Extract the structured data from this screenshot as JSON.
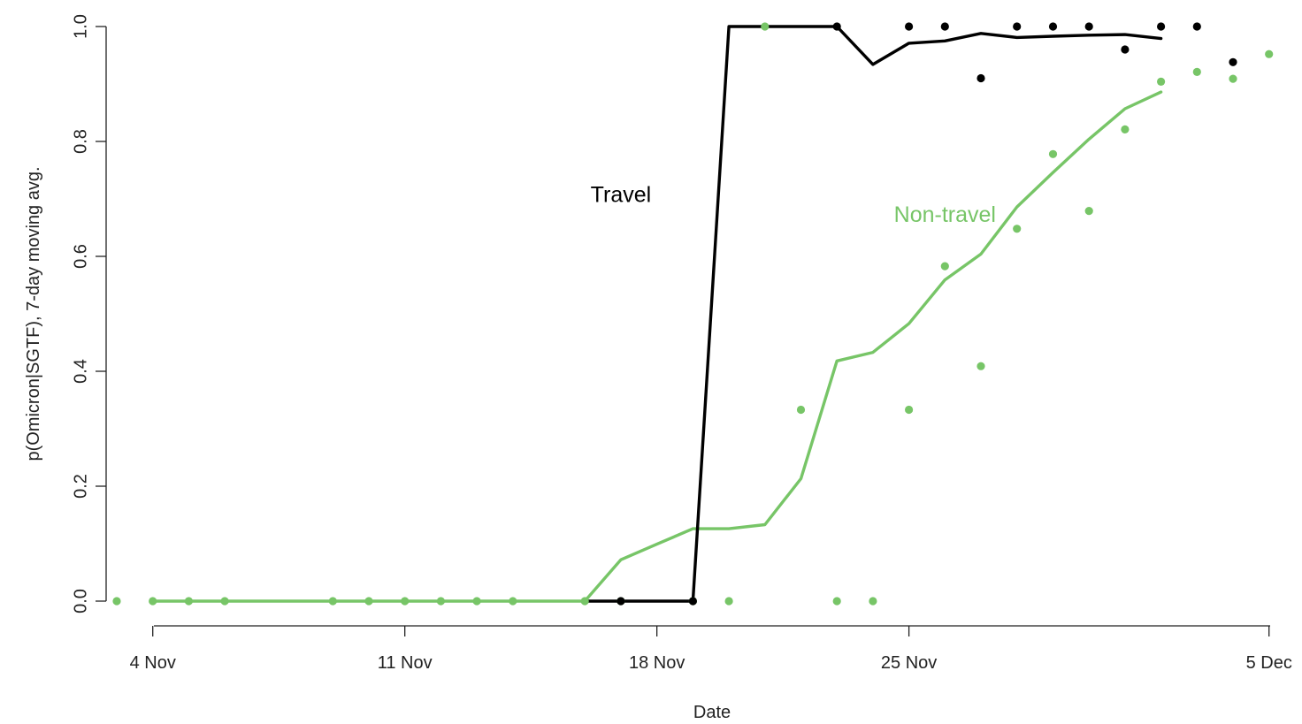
{
  "chart_data": {
    "type": "line",
    "xlabel": "Date",
    "ylabel": "p(Omicron|SGTF), 7-day moving avg.",
    "xlim": [
      "2021-11-03",
      "2021-12-05"
    ],
    "ylim": [
      0,
      1
    ],
    "x_ticks": [
      {
        "date": "2021-11-04",
        "label": "4 Nov"
      },
      {
        "date": "2021-11-11",
        "label": "11 Nov"
      },
      {
        "date": "2021-11-18",
        "label": "18 Nov"
      },
      {
        "date": "2021-11-25",
        "label": "25 Nov"
      },
      {
        "date": "2021-12-05",
        "label": "5 Dec"
      }
    ],
    "y_ticks": [
      {
        "value": 0.0,
        "label": "0.0"
      },
      {
        "value": 0.2,
        "label": "0.2"
      },
      {
        "value": 0.4,
        "label": "0.4"
      },
      {
        "value": 0.6,
        "label": "0.6"
      },
      {
        "value": 0.8,
        "label": "0.8"
      },
      {
        "value": 1.0,
        "label": "1.0"
      }
    ],
    "grid": false,
    "annotations": [
      {
        "text": "Travel",
        "series": "travel",
        "date": "2021-11-17",
        "y": 0.695
      },
      {
        "text": "Non-travel",
        "series": "non_travel",
        "date": "2021-11-26",
        "y": 0.66
      }
    ],
    "series": [
      {
        "key": "travel",
        "name": "Travel",
        "color": "#000000",
        "line": [
          {
            "date": "2021-11-16",
            "y": 0.0
          },
          {
            "date": "2021-11-17",
            "y": 0.0
          },
          {
            "date": "2021-11-18",
            "y": 0.0
          },
          {
            "date": "2021-11-19",
            "y": 0.0
          },
          {
            "date": "2021-11-20",
            "y": 1.0
          },
          {
            "date": "2021-11-21",
            "y": 1.0
          },
          {
            "date": "2021-11-22",
            "y": 1.0
          },
          {
            "date": "2021-11-23",
            "y": 1.0
          },
          {
            "date": "2021-11-24",
            "y": 0.934
          },
          {
            "date": "2021-11-25",
            "y": 0.971
          },
          {
            "date": "2021-11-26",
            "y": 0.975
          },
          {
            "date": "2021-11-27",
            "y": 0.988
          },
          {
            "date": "2021-11-28",
            "y": 0.981
          },
          {
            "date": "2021-11-29",
            "y": 0.983
          },
          {
            "date": "2021-11-30",
            "y": 0.985
          },
          {
            "date": "2021-12-01",
            "y": 0.986
          },
          {
            "date": "2021-12-02",
            "y": 0.979
          }
        ],
        "points": [
          {
            "date": "2021-11-17",
            "y": 0.0
          },
          {
            "date": "2021-11-19",
            "y": 0.0
          },
          {
            "date": "2021-11-23",
            "y": 1.0
          },
          {
            "date": "2021-11-25",
            "y": 1.0
          },
          {
            "date": "2021-11-26",
            "y": 1.0
          },
          {
            "date": "2021-11-27",
            "y": 0.91
          },
          {
            "date": "2021-11-28",
            "y": 1.0
          },
          {
            "date": "2021-11-29",
            "y": 1.0
          },
          {
            "date": "2021-11-30",
            "y": 1.0
          },
          {
            "date": "2021-12-01",
            "y": 0.96
          },
          {
            "date": "2021-12-02",
            "y": 1.0
          },
          {
            "date": "2021-12-03",
            "y": 1.0
          },
          {
            "date": "2021-12-04",
            "y": 0.938
          }
        ]
      },
      {
        "key": "non_travel",
        "name": "Non-travel",
        "color": "#77c567",
        "line": [
          {
            "date": "2021-11-04",
            "y": 0.0
          },
          {
            "date": "2021-11-05",
            "y": 0.0
          },
          {
            "date": "2021-11-06",
            "y": 0.0
          },
          {
            "date": "2021-11-07",
            "y": 0.0
          },
          {
            "date": "2021-11-08",
            "y": 0.0
          },
          {
            "date": "2021-11-09",
            "y": 0.0
          },
          {
            "date": "2021-11-10",
            "y": 0.0
          },
          {
            "date": "2021-11-11",
            "y": 0.0
          },
          {
            "date": "2021-11-12",
            "y": 0.0
          },
          {
            "date": "2021-11-13",
            "y": 0.0
          },
          {
            "date": "2021-11-14",
            "y": 0.0
          },
          {
            "date": "2021-11-15",
            "y": 0.0
          },
          {
            "date": "2021-11-16",
            "y": 0.0
          },
          {
            "date": "2021-11-17",
            "y": 0.072
          },
          {
            "date": "2021-11-18",
            "y": 0.099
          },
          {
            "date": "2021-11-19",
            "y": 0.126
          },
          {
            "date": "2021-11-20",
            "y": 0.126
          },
          {
            "date": "2021-11-21",
            "y": 0.133
          },
          {
            "date": "2021-11-22",
            "y": 0.213
          },
          {
            "date": "2021-11-23",
            "y": 0.418
          },
          {
            "date": "2021-11-24",
            "y": 0.433
          },
          {
            "date": "2021-11-25",
            "y": 0.483
          },
          {
            "date": "2021-11-26",
            "y": 0.559
          },
          {
            "date": "2021-11-27",
            "y": 0.604
          },
          {
            "date": "2021-11-28",
            "y": 0.686
          },
          {
            "date": "2021-11-29",
            "y": 0.746
          },
          {
            "date": "2021-11-30",
            "y": 0.804
          },
          {
            "date": "2021-12-01",
            "y": 0.857
          },
          {
            "date": "2021-12-02",
            "y": 0.886
          }
        ],
        "points": [
          {
            "date": "2021-11-03",
            "y": 0.0
          },
          {
            "date": "2021-11-04",
            "y": 0.0
          },
          {
            "date": "2021-11-05",
            "y": 0.0
          },
          {
            "date": "2021-11-06",
            "y": 0.0
          },
          {
            "date": "2021-11-09",
            "y": 0.0
          },
          {
            "date": "2021-11-10",
            "y": 0.0
          },
          {
            "date": "2021-11-11",
            "y": 0.0
          },
          {
            "date": "2021-11-12",
            "y": 0.0
          },
          {
            "date": "2021-11-13",
            "y": 0.0
          },
          {
            "date": "2021-11-14",
            "y": 0.0
          },
          {
            "date": "2021-11-16",
            "y": 0.0
          },
          {
            "date": "2021-11-17",
            "y": 0.0
          },
          {
            "date": "2021-11-19",
            "y": 0.0
          },
          {
            "date": "2021-11-20",
            "y": 0.0
          },
          {
            "date": "2021-11-21",
            "y": 1.0
          },
          {
            "date": "2021-11-22",
            "y": 0.333
          },
          {
            "date": "2021-11-23",
            "y": 0.0
          },
          {
            "date": "2021-11-24",
            "y": 0.0
          },
          {
            "date": "2021-11-25",
            "y": 0.333
          },
          {
            "date": "2021-11-26",
            "y": 0.583
          },
          {
            "date": "2021-11-27",
            "y": 0.409
          },
          {
            "date": "2021-11-28",
            "y": 0.648
          },
          {
            "date": "2021-11-29",
            "y": 0.778
          },
          {
            "date": "2021-11-30",
            "y": 0.679
          },
          {
            "date": "2021-12-01",
            "y": 0.821
          },
          {
            "date": "2021-12-02",
            "y": 0.904
          },
          {
            "date": "2021-12-03",
            "y": 0.921
          },
          {
            "date": "2021-12-04",
            "y": 0.909
          },
          {
            "date": "2021-12-05",
            "y": 0.952
          }
        ]
      }
    ]
  }
}
